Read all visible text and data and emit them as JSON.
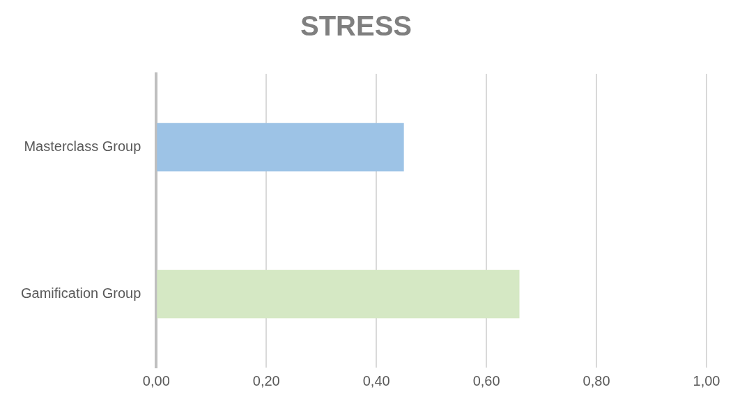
{
  "chart_data": {
    "type": "bar",
    "orientation": "horizontal",
    "title": "STRESS",
    "categories": [
      "Masterclass Group",
      "Gamification Group"
    ],
    "values": [
      0.45,
      0.66
    ],
    "colors": [
      "#9dc3e6",
      "#d5e8c4"
    ],
    "xlim": [
      0,
      1
    ],
    "xticks": [
      {
        "value": 0,
        "label": "0,00"
      },
      {
        "value": 0.2,
        "label": "0,20"
      },
      {
        "value": 0.4,
        "label": "0,40"
      },
      {
        "value": 0.6,
        "label": "0,60"
      },
      {
        "value": 0.8,
        "label": "0,80"
      },
      {
        "value": 1,
        "label": "1,00"
      }
    ],
    "grid": "x",
    "legend": false
  }
}
